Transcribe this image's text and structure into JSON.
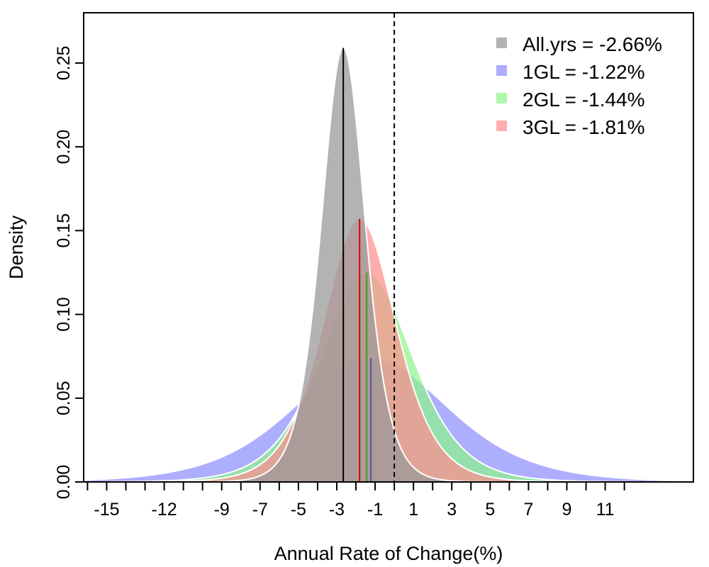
{
  "chart_data": {
    "type": "area",
    "title": "",
    "xlabel": "Annual Rate of Change(%)",
    "ylabel": "Density",
    "xlim": [
      -16.2,
      15.6
    ],
    "ylim": [
      0,
      0.28
    ],
    "x_ticks": [
      -16,
      -15,
      -14,
      -13,
      -12,
      -11,
      -10,
      -9,
      -8,
      -7,
      -6,
      -5,
      -4,
      -3,
      -2,
      -1,
      0,
      1,
      2,
      3,
      4,
      5,
      6,
      7,
      8,
      9,
      10,
      11,
      12
    ],
    "x_tick_labels": [
      "-15",
      "-12",
      "-9",
      "-7",
      "-5",
      "-3",
      "-1",
      "1",
      "3",
      "5",
      "7",
      "9",
      "11"
    ],
    "x_tick_label_values": [
      -15,
      -12,
      -9,
      -7,
      -5,
      -3,
      -1,
      1,
      3,
      5,
      7,
      9,
      11
    ],
    "y_ticks": [
      0.0,
      0.05,
      0.1,
      0.15,
      0.2,
      0.25
    ],
    "y_tick_labels": [
      "0.00",
      "0.05",
      "0.10",
      "0.15",
      "0.20",
      "0.25"
    ],
    "reference_line": {
      "x": 0,
      "style": "dashed"
    },
    "legend_position": "top-right",
    "series": [
      {
        "name": "All.yrs = -2.66%",
        "mean": -2.66,
        "peak": 0.259,
        "scale": 1.54,
        "color": "#999999",
        "opacity": 0.75,
        "vline_color": "#000000"
      },
      {
        "name": "1GL = -1.22%",
        "mean": -1.22,
        "peak": 0.074,
        "scale": 5.4,
        "color": "#8c8cff",
        "opacity": 0.7,
        "vline_color": "#5050a0"
      },
      {
        "name": "2GL = -1.44%",
        "mean": -1.44,
        "peak": 0.125,
        "scale": 3.2,
        "color": "#8cf58c",
        "opacity": 0.7,
        "vline_color": "#4a9a1a"
      },
      {
        "name": "3GL = -1.81%",
        "mean": -1.81,
        "peak": 0.157,
        "scale": 2.55,
        "color": "#ff8c8c",
        "opacity": 0.7,
        "vline_color": "#dd0000"
      }
    ]
  }
}
